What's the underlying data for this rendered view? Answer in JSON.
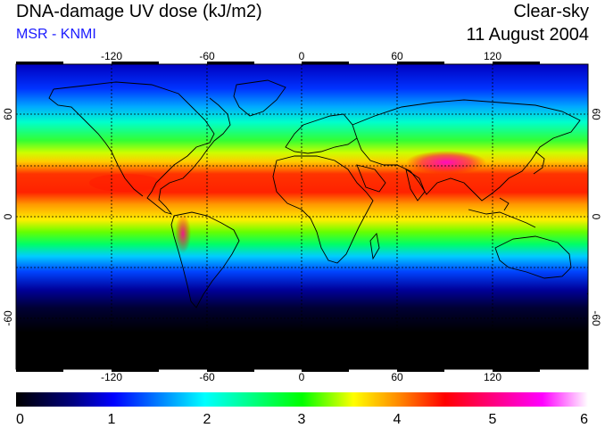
{
  "header": {
    "title": "DNA-damage UV dose (kJ/m2)",
    "subtitle": "MSR - KNMI",
    "condition": "Clear-sky",
    "date": "11 August 2004"
  },
  "map": {
    "lon_ticks": [
      "-120",
      "-60",
      "0",
      "60",
      "120"
    ],
    "lat_ticks": [
      "60",
      "0",
      "-60"
    ],
    "lon_range": [
      -180,
      180
    ],
    "lat_range": [
      -90,
      90
    ],
    "grid": true
  },
  "colorbar": {
    "labels": [
      "0",
      "1",
      "2",
      "3",
      "4",
      "5",
      "6"
    ],
    "range": [
      0,
      6
    ],
    "colors": [
      "#000000",
      "#0000ff",
      "#00ffff",
      "#00ff00",
      "#ffff00",
      "#ff0000",
      "#ff00ff",
      "#ffffff"
    ]
  }
}
